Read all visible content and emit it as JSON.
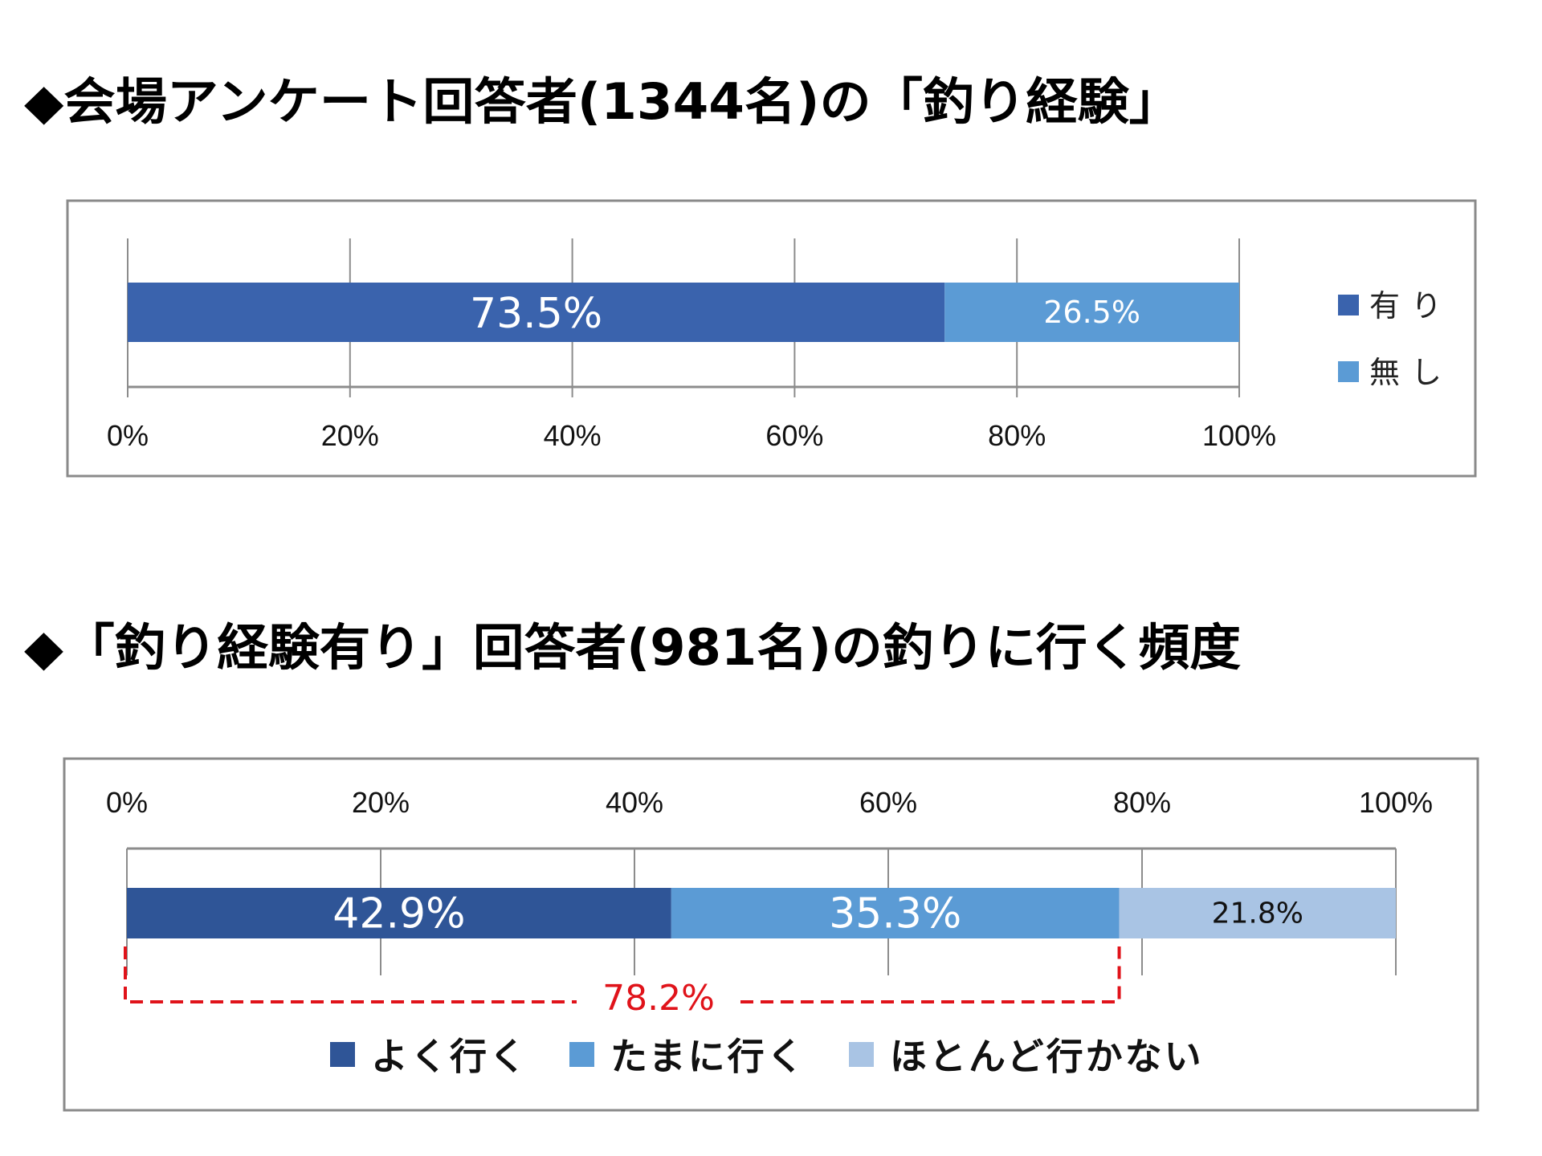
{
  "page": {
    "title1": "◆会場アンケート回答者(1344名)の「釣り経験」",
    "title2": "◆「釣り経験有り」回答者(981名)の釣りに行く頻度"
  },
  "colors": {
    "dark_blue": "#3A63AD",
    "mid_blue": "#5B9BD5",
    "navy": "#2F5597",
    "light_blue": "#A9C4E4",
    "red": "#E0131A"
  },
  "chart_data": [
    {
      "type": "bar",
      "orientation": "horizontal-stacked-100",
      "title": "◆会場アンケート回答者(1344名)の「釣り経験」",
      "categories": [
        ""
      ],
      "series": [
        {
          "name": "有り",
          "values": [
            73.5
          ],
          "label": "73.5%"
        },
        {
          "name": "無し",
          "values": [
            26.5
          ],
          "label": "26.5%"
        }
      ],
      "xlim": [
        0,
        100
      ],
      "xticks": [
        "0%",
        "20%",
        "40%",
        "60%",
        "80%",
        "100%"
      ],
      "tick_values": [
        0,
        20,
        40,
        60,
        80,
        100
      ],
      "axis_position": "bottom",
      "grid": true,
      "legend": {
        "position": "right",
        "entries": [
          "有り",
          "無し"
        ]
      }
    },
    {
      "type": "bar",
      "orientation": "horizontal-stacked-100",
      "title": "◆「釣り経験有り」回答者(981名)の釣りに行く頻度",
      "categories": [
        ""
      ],
      "series": [
        {
          "name": "よく行く",
          "values": [
            42.9
          ],
          "label": "42.9%"
        },
        {
          "name": "たまに行く",
          "values": [
            35.3
          ],
          "label": "35.3%"
        },
        {
          "name": "ほとんど行かない",
          "values": [
            21.8
          ],
          "label": "21.8%"
        }
      ],
      "xlim": [
        0,
        100
      ],
      "xticks": [
        "0%",
        "20%",
        "40%",
        "60%",
        "80%",
        "100%"
      ],
      "tick_values": [
        0,
        20,
        40,
        60,
        80,
        100
      ],
      "axis_position": "top",
      "grid": true,
      "legend": {
        "position": "bottom",
        "entries": [
          "よく行く",
          "たまに行く",
          "ほとんど行かない"
        ]
      },
      "annotation": {
        "text": "78.2%",
        "value": 78.2,
        "spans": [
          "よく行く",
          "たまに行く"
        ]
      }
    }
  ]
}
